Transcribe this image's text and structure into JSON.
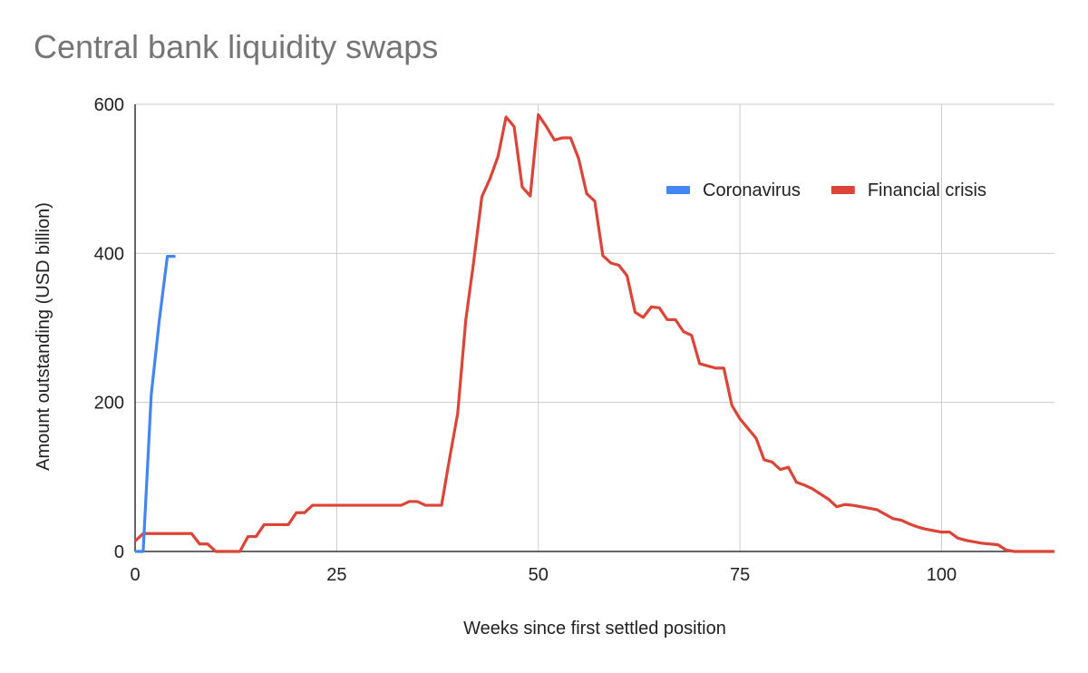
{
  "chart_data": {
    "type": "line",
    "title": "Central bank liquidity swaps",
    "xlabel": "Weeks since first settled position",
    "ylabel": "Amount outstanding (USD billion)",
    "xlim": [
      0,
      114
    ],
    "ylim": [
      0,
      600
    ],
    "xticks": [
      0,
      25,
      50,
      75,
      100
    ],
    "yticks": [
      0,
      200,
      400,
      600
    ],
    "grid": true,
    "legend_position": "top-right",
    "series": [
      {
        "name": "Coronavirus",
        "color": "#4285f4",
        "x": [
          0,
          1,
          2,
          3,
          4,
          5
        ],
        "y": [
          0,
          0,
          210,
          310,
          396,
          396
        ]
      },
      {
        "name": "Financial crisis",
        "color": "#db4437",
        "x": [
          0,
          1,
          2,
          3,
          4,
          5,
          6,
          7,
          8,
          9,
          10,
          11,
          12,
          13,
          14,
          15,
          16,
          17,
          18,
          19,
          20,
          21,
          22,
          23,
          24,
          25,
          26,
          27,
          28,
          29,
          30,
          31,
          32,
          33,
          34,
          35,
          36,
          37,
          38,
          39,
          40,
          41,
          42,
          43,
          44,
          45,
          46,
          47,
          48,
          49,
          50,
          51,
          52,
          53,
          54,
          55,
          56,
          57,
          58,
          59,
          60,
          61,
          62,
          63,
          64,
          65,
          66,
          67,
          68,
          69,
          70,
          71,
          72,
          73,
          74,
          75,
          76,
          77,
          78,
          79,
          80,
          81,
          82,
          83,
          84,
          85,
          86,
          87,
          88,
          89,
          90,
          91,
          92,
          93,
          94,
          95,
          96,
          97,
          98,
          99,
          100,
          101,
          102,
          103,
          104,
          105,
          106,
          107,
          108,
          109,
          110,
          111,
          112,
          113,
          114
        ],
        "y": [
          14,
          24,
          24,
          24,
          24,
          24,
          24,
          24,
          10,
          10,
          0,
          0,
          0,
          0,
          20,
          20,
          36,
          36,
          36,
          36,
          52,
          52,
          62,
          62,
          62,
          62,
          62,
          62,
          62,
          62,
          62,
          62,
          62,
          62,
          67,
          67,
          62,
          62,
          62,
          125,
          185,
          310,
          390,
          476,
          500,
          530,
          583,
          570,
          489,
          477,
          586,
          570,
          552,
          555,
          555,
          527,
          480,
          470,
          397,
          387,
          384,
          370,
          321,
          314,
          328,
          327,
          311,
          311,
          295,
          290,
          252,
          249,
          246,
          246,
          196,
          178,
          165,
          152,
          123,
          120,
          110,
          113,
          93,
          89,
          84,
          77,
          70,
          60,
          63,
          62,
          60,
          58,
          56,
          50,
          44,
          42,
          37,
          33,
          30,
          28,
          26,
          26,
          18,
          15,
          13,
          11,
          10,
          9,
          2,
          0,
          0,
          0,
          0,
          0,
          0
        ]
      }
    ]
  }
}
